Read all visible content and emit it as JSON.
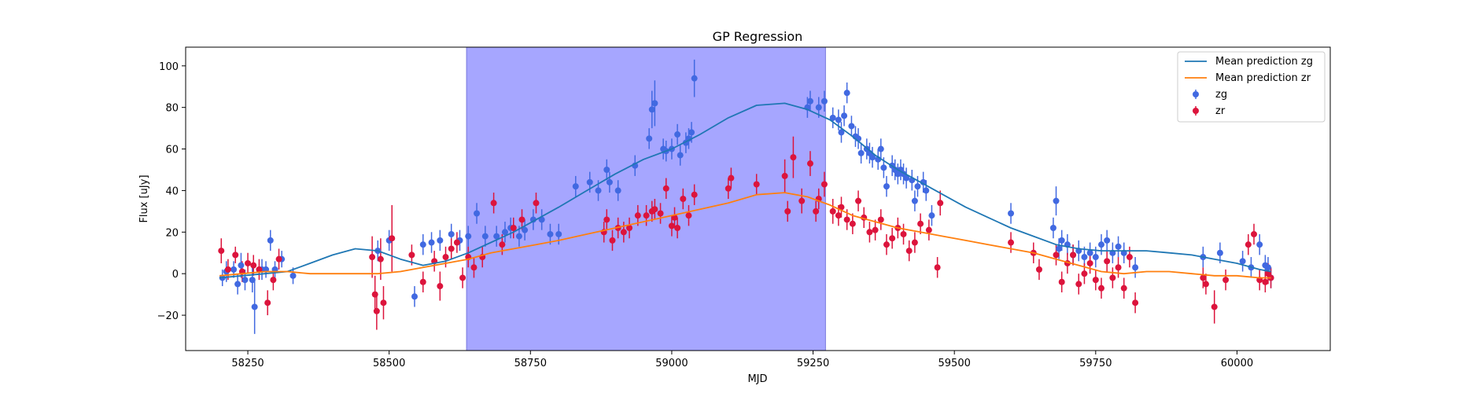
{
  "chart_data": {
    "type": "scatter",
    "title": "GP Regression",
    "xlabel": "MJD",
    "ylabel": "Flux [uJy]",
    "xlim": [
      58140,
      60165
    ],
    "ylim": [
      -37,
      109
    ],
    "xticks": [
      58250,
      58500,
      58750,
      59000,
      59250,
      59500,
      59750,
      60000
    ],
    "yticks": [
      -20,
      0,
      20,
      40,
      60,
      80,
      100
    ],
    "grid": false,
    "legend_position": "top-right",
    "shaded_region": {
      "x_start": 58637,
      "x_end": 59272,
      "color": "#a6a6ff"
    },
    "colors": {
      "zg": "#4169e1",
      "zr": "#dc143c",
      "mean_zg": "#1f77b4",
      "mean_zr": "#ff7f0e"
    },
    "series": [
      {
        "name": "Mean prediction zg",
        "kind": "line",
        "x": [
          58200,
          58240,
          58280,
          58320,
          58360,
          58400,
          58440,
          58480,
          58520,
          58560,
          58600,
          58640,
          58680,
          58720,
          58760,
          58800,
          58850,
          58900,
          58950,
          59000,
          59050,
          59100,
          59150,
          59200,
          59240,
          59280,
          59320,
          59360,
          59400,
          59440,
          59480,
          59520,
          59560,
          59600,
          59640,
          59680,
          59720,
          59760,
          59800,
          59840,
          59880,
          59920,
          59960,
          60000,
          60040,
          60060
        ],
        "y": [
          -2,
          -1,
          0,
          1,
          5,
          9,
          12,
          11,
          7,
          4,
          6,
          10,
          15,
          20,
          26,
          32,
          40,
          48,
          55,
          60,
          67,
          75,
          81,
          82,
          79,
          74,
          66,
          57,
          50,
          44,
          38,
          32,
          27,
          22,
          18,
          14,
          12,
          11,
          11,
          11,
          10,
          9,
          7,
          5,
          2,
          1
        ]
      },
      {
        "name": "Mean prediction zr",
        "kind": "line",
        "x": [
          58200,
          58240,
          58280,
          58320,
          58360,
          58400,
          58440,
          58480,
          58520,
          58560,
          58600,
          58640,
          58680,
          58720,
          58760,
          58800,
          58850,
          58900,
          58950,
          59000,
          59050,
          59100,
          59150,
          59200,
          59240,
          59280,
          59320,
          59360,
          59400,
          59440,
          59480,
          59520,
          59560,
          59600,
          59640,
          59680,
          59720,
          59760,
          59800,
          59840,
          59880,
          59920,
          59960,
          60000,
          60040,
          60060
        ],
        "y": [
          -1,
          0,
          1,
          1,
          0,
          0,
          0,
          0,
          1,
          3,
          5,
          7,
          10,
          12,
          14,
          16,
          19,
          22,
          25,
          28,
          31,
          34,
          38,
          39,
          37,
          33,
          28,
          25,
          22,
          20,
          18,
          16,
          14,
          12,
          10,
          7,
          4,
          1,
          0,
          1,
          1,
          0,
          -1,
          -1,
          -2,
          -2
        ]
      },
      {
        "name": "zg",
        "kind": "errorbar",
        "x": [
          58205,
          58212,
          58225,
          58232,
          58238,
          58245,
          58258,
          58262,
          58275,
          58282,
          58290,
          58298,
          58310,
          58330,
          58480,
          58500,
          58545,
          58560,
          58575,
          58590,
          58610,
          58625,
          58640,
          58655,
          58670,
          58690,
          58705,
          58715,
          58730,
          58740,
          58755,
          58770,
          58785,
          58800,
          58830,
          58855,
          58870,
          58885,
          58890,
          58905,
          58935,
          58960,
          58965,
          58970,
          58985,
          58990,
          59000,
          59010,
          59015,
          59025,
          59030,
          59035,
          59040,
          59240,
          59245,
          59260,
          59270,
          59285,
          59295,
          59300,
          59305,
          59310,
          59318,
          59325,
          59330,
          59335,
          59345,
          59350,
          59355,
          59365,
          59370,
          59375,
          59380,
          59390,
          59395,
          59400,
          59405,
          59410,
          59415,
          59425,
          59430,
          59435,
          59445,
          59450,
          59460,
          59600,
          59675,
          59680,
          59685,
          59690,
          59700,
          59710,
          59720,
          59730,
          59740,
          59750,
          59760,
          59770,
          59780,
          59790,
          59800,
          59820,
          59940,
          59970,
          60010,
          60025,
          60040,
          60050,
          60055,
          60060
        ],
        "y": [
          -2,
          1,
          2,
          -5,
          4,
          -3,
          -3,
          -16,
          2,
          2,
          16,
          2,
          7,
          -1,
          11,
          16,
          -11,
          14,
          15,
          16,
          19,
          16,
          18,
          29,
          18,
          18,
          20,
          22,
          18,
          21,
          26,
          26,
          19,
          19,
          42,
          44,
          40,
          50,
          44,
          40,
          52,
          65,
          79,
          82,
          60,
          59,
          60,
          67,
          57,
          63,
          65,
          68,
          94,
          80,
          83,
          80,
          83,
          75,
          74,
          68,
          76,
          87,
          71,
          66,
          65,
          58,
          60,
          58,
          56,
          55,
          60,
          51,
          42,
          52,
          50,
          48,
          50,
          48,
          46,
          45,
          35,
          42,
          44,
          40,
          28,
          29,
          22,
          35,
          12,
          16,
          14,
          9,
          11,
          8,
          10,
          8,
          14,
          16,
          10,
          13,
          10,
          3,
          8,
          10,
          6,
          3,
          14,
          4,
          3,
          -2
        ],
        "err": [
          4,
          5,
          4,
          5,
          6,
          5,
          6,
          13,
          5,
          4,
          5,
          4,
          4,
          4,
          5,
          5,
          5,
          5,
          5,
          5,
          5,
          5,
          5,
          5,
          5,
          5,
          5,
          5,
          5,
          5,
          5,
          5,
          5,
          5,
          5,
          5,
          5,
          5,
          5,
          5,
          5,
          5,
          9,
          11,
          5,
          5,
          5,
          5,
          5,
          5,
          5,
          5,
          9,
          5,
          5,
          5,
          5,
          5,
          5,
          5,
          5,
          5,
          5,
          5,
          5,
          5,
          5,
          5,
          5,
          5,
          5,
          5,
          5,
          5,
          5,
          5,
          5,
          5,
          5,
          5,
          5,
          5,
          5,
          5,
          5,
          5,
          5,
          7,
          5,
          5,
          5,
          5,
          5,
          5,
          5,
          5,
          5,
          5,
          5,
          5,
          5,
          5,
          5,
          5,
          5,
          5,
          5,
          5,
          5,
          5
        ]
      },
      {
        "name": "zr",
        "kind": "errorbar",
        "x": [
          58203,
          58215,
          58228,
          58240,
          58250,
          58260,
          58270,
          58285,
          58295,
          58305,
          58470,
          58475,
          58478,
          58485,
          58490,
          58505,
          58540,
          58560,
          58580,
          58590,
          58600,
          58610,
          58620,
          58630,
          58640,
          58650,
          58665,
          58685,
          58700,
          58720,
          58735,
          58760,
          58880,
          58885,
          58895,
          58905,
          58915,
          58925,
          58940,
          58955,
          58965,
          58970,
          58980,
          58990,
          59000,
          59005,
          59010,
          59020,
          59030,
          59040,
          59100,
          59105,
          59150,
          59200,
          59205,
          59215,
          59230,
          59245,
          59255,
          59260,
          59270,
          59285,
          59295,
          59300,
          59310,
          59320,
          59330,
          59340,
          59350,
          59360,
          59370,
          59380,
          59390,
          59400,
          59410,
          59420,
          59430,
          59440,
          59455,
          59470,
          59475,
          59600,
          59640,
          59650,
          59680,
          59690,
          59700,
          59710,
          59720,
          59730,
          59740,
          59750,
          59760,
          59770,
          59780,
          59790,
          59800,
          59810,
          59820,
          59940,
          59945,
          59960,
          59980,
          60020,
          60030,
          60040,
          60050,
          60055,
          60060
        ],
        "y": [
          11,
          2,
          9,
          1,
          5,
          4,
          2,
          -14,
          -3,
          7,
          8,
          -10,
          -18,
          7,
          -14,
          17,
          9,
          -4,
          6,
          -6,
          8,
          12,
          15,
          -2,
          8,
          3,
          8,
          34,
          14,
          22,
          26,
          34,
          20,
          26,
          16,
          22,
          20,
          22,
          28,
          28,
          30,
          31,
          29,
          41,
          23,
          27,
          22,
          36,
          28,
          38,
          41,
          46,
          43,
          47,
          30,
          56,
          35,
          53,
          30,
          36,
          43,
          30,
          28,
          32,
          26,
          24,
          35,
          27,
          20,
          21,
          26,
          14,
          17,
          22,
          19,
          11,
          15,
          24,
          21,
          3,
          34,
          15,
          10,
          2,
          9,
          -4,
          5,
          9,
          -5,
          0,
          5,
          -3,
          -7,
          6,
          -2,
          3,
          -7,
          8,
          -14,
          -2,
          -5,
          -16,
          -3,
          14,
          19,
          -3,
          -4,
          0,
          -2
        ],
        "err": [
          6,
          5,
          4,
          5,
          5,
          5,
          5,
          6,
          5,
          5,
          10,
          9,
          9,
          10,
          8,
          16,
          5,
          5,
          5,
          7,
          5,
          5,
          5,
          5,
          5,
          5,
          5,
          5,
          5,
          5,
          5,
          5,
          5,
          5,
          5,
          5,
          5,
          5,
          5,
          5,
          5,
          5,
          5,
          5,
          5,
          5,
          5,
          5,
          5,
          5,
          5,
          5,
          5,
          8,
          5,
          10,
          6,
          6,
          5,
          5,
          6,
          6,
          5,
          5,
          5,
          5,
          5,
          5,
          5,
          5,
          5,
          5,
          5,
          5,
          5,
          5,
          5,
          5,
          5,
          5,
          6,
          5,
          5,
          5,
          5,
          5,
          5,
          5,
          5,
          5,
          5,
          5,
          5,
          5,
          5,
          5,
          5,
          5,
          5,
          5,
          5,
          8,
          5,
          5,
          5,
          5,
          5,
          5,
          5
        ]
      }
    ]
  }
}
